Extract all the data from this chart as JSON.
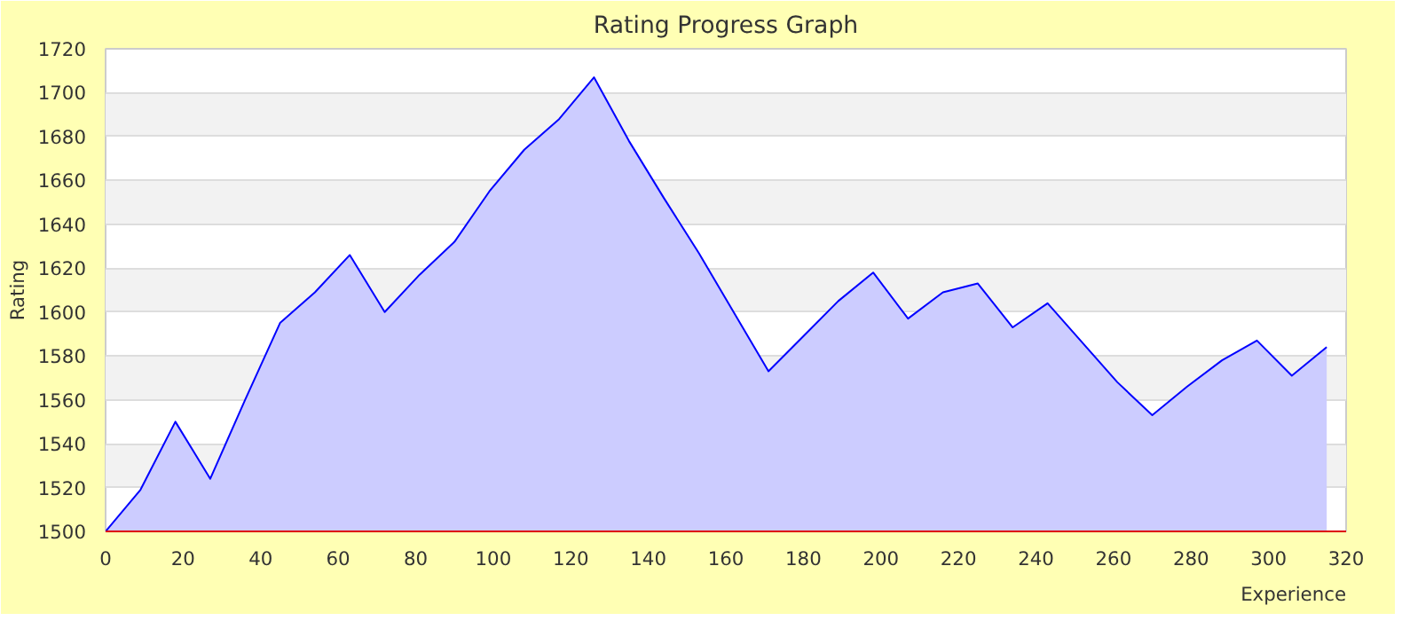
{
  "chart_data": {
    "type": "area",
    "title": "Rating Progress Graph",
    "xlabel": "Experience",
    "ylabel": "Rating",
    "x": [
      0,
      9,
      18,
      27,
      36,
      45,
      54,
      63,
      72,
      81,
      90,
      99,
      108,
      117,
      126,
      135,
      144,
      153,
      162,
      171,
      180,
      189,
      198,
      207,
      216,
      225,
      234,
      243,
      252,
      261,
      270,
      279,
      288,
      297,
      306,
      315
    ],
    "series": [
      {
        "color": "#0000ff",
        "values": [
          1500,
          1519,
          1550,
          1524,
          1560,
          1595,
          1609,
          1626,
          1600,
          1617,
          1632,
          1655,
          1674,
          1688,
          1707,
          1678,
          1652,
          1627,
          1600,
          1573,
          1589,
          1605,
          1618,
          1597,
          1609,
          1613,
          1593,
          1604,
          1586,
          1568,
          1553,
          1566,
          1578,
          1587,
          1571,
          1584
        ]
      }
    ],
    "xlim": [
      0,
      320
    ],
    "ylim": [
      1500,
      1720
    ],
    "xticks": [
      0,
      20,
      40,
      60,
      80,
      100,
      120,
      140,
      160,
      180,
      200,
      220,
      240,
      260,
      280,
      300,
      320
    ],
    "yticks": [
      1500,
      1520,
      1540,
      1560,
      1580,
      1600,
      1620,
      1640,
      1660,
      1680,
      1700,
      1720
    ],
    "grid": "y"
  }
}
